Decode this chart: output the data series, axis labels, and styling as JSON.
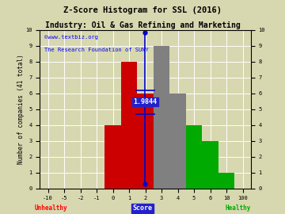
{
  "title_line1": "Z-Score Histogram for SSL (2016)",
  "title_line2": "Industry: Oil & Gas Refining and Marketing",
  "watermark1": "©www.textbiz.org",
  "watermark2": "The Research Foundation of SUNY",
  "ylabel": "Number of companies (41 total)",
  "xlabel_center": "Score",
  "xlabel_left": "Unhealthy",
  "xlabel_right": "Healthy",
  "bar_labels": [
    "-10",
    "-5",
    "-2",
    "-1",
    "0",
    "1",
    "2",
    "3",
    "4",
    "5",
    "6",
    "10",
    "100"
  ],
  "bar_heights": [
    0,
    0,
    0,
    0,
    4,
    8,
    6,
    9,
    6,
    4,
    3,
    1,
    0
  ],
  "bar_colors": [
    "#cc0000",
    "#cc0000",
    "#cc0000",
    "#cc0000",
    "#cc0000",
    "#cc0000",
    "#cc0000",
    "#808080",
    "#808080",
    "#00aa00",
    "#00aa00",
    "#00aa00",
    "#00aa00"
  ],
  "zscore_value": 1.9844,
  "zscore_label": "1.9844",
  "ylim": [
    0,
    10
  ],
  "bg_color": "#d8d8b0",
  "grid_color": "#ffffff",
  "title_fontsize": 7.5,
  "label_fontsize": 5.5,
  "tick_fontsize": 5,
  "watermark_fontsize": 5
}
